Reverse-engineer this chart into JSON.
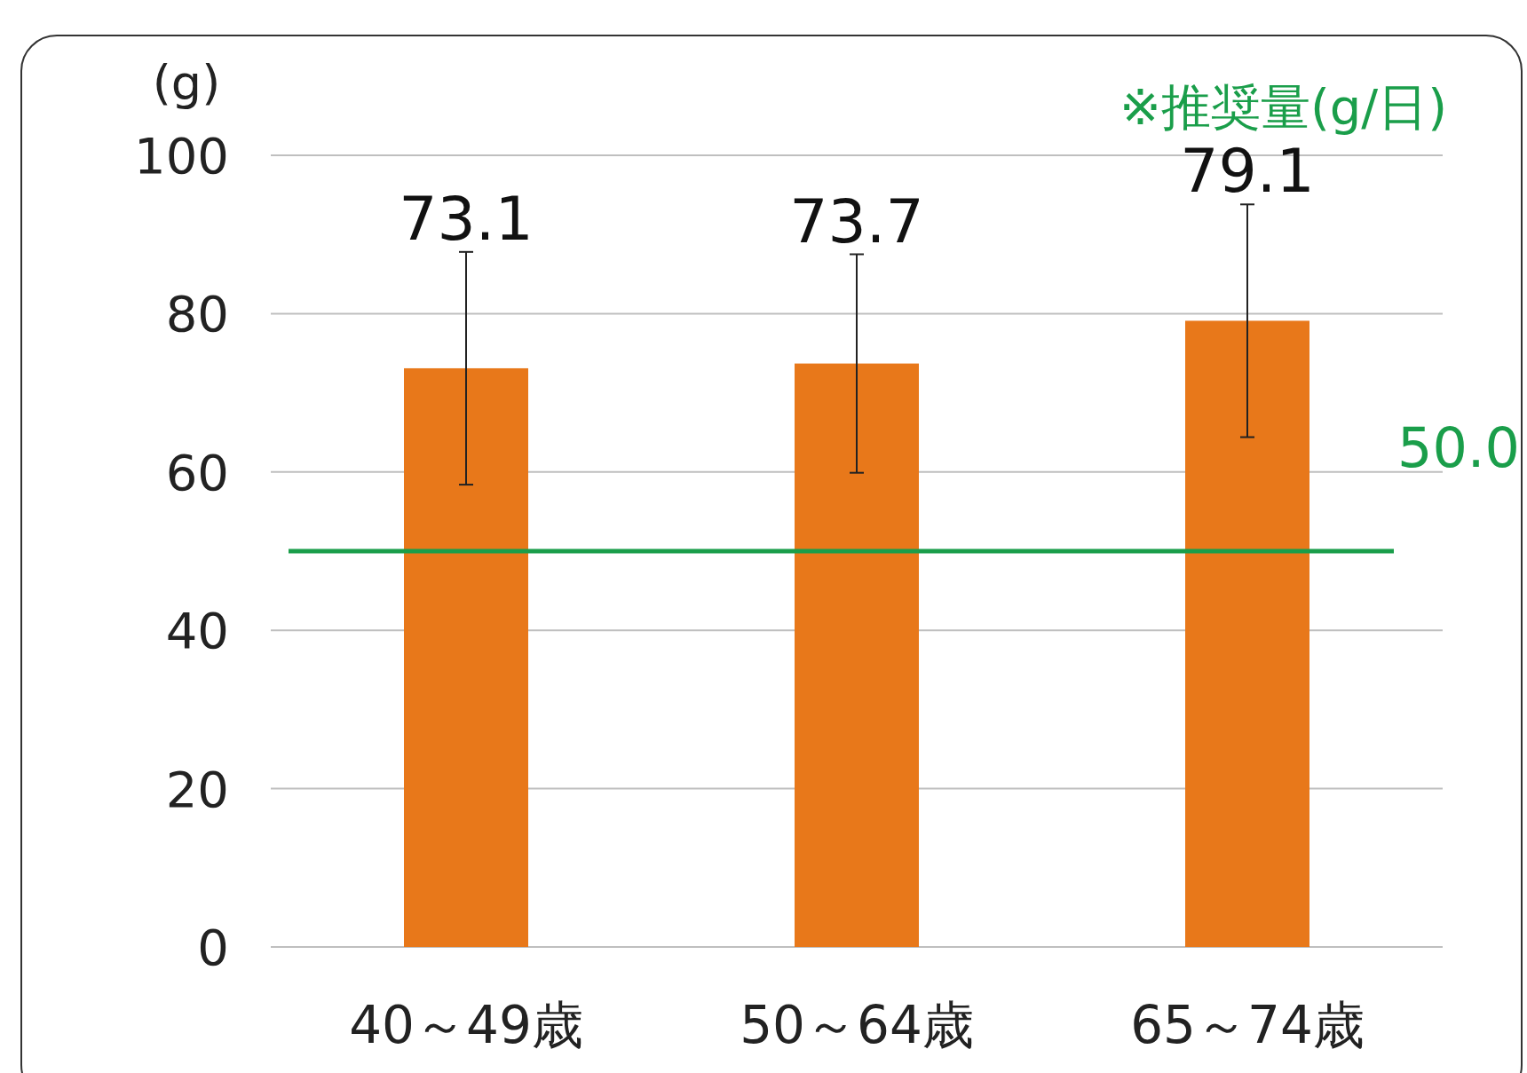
{
  "chart_data": {
    "type": "bar",
    "ylabel": "(g)",
    "categories": [
      "40～49歳",
      "50～64歳",
      "65～74歳"
    ],
    "values": [
      73.1,
      73.7,
      79.1
    ],
    "errors": [
      14.7,
      13.8,
      14.7
    ],
    "color": "#e8781a",
    "data_labels": true,
    "grid": "y",
    "ylim": [
      0,
      100
    ],
    "yticks": [
      0,
      20,
      40,
      60,
      80,
      100
    ],
    "ref_lines": [
      {
        "axis": "y",
        "value": 50,
        "label": "50.0",
        "color": "#1a9e4a"
      }
    ],
    "annotations": [
      "※推奨量(g/日)"
    ]
  }
}
